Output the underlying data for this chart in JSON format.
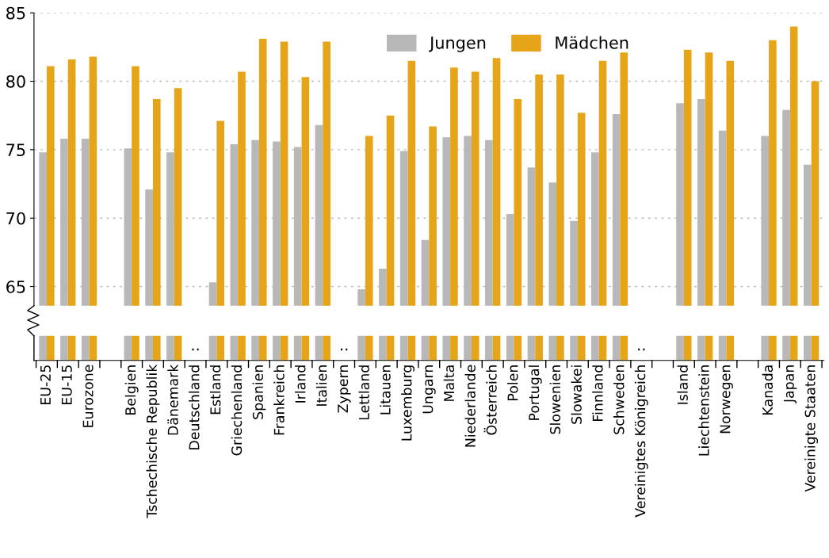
{
  "chart_data": {
    "type": "bar",
    "categories": [
      "EU-25",
      "EU-15",
      "Eurozone",
      null,
      "Belgien",
      "Tschechische Republik",
      "Dänemark",
      "Deutschland",
      "Estland",
      "Griechenland",
      "Spanien",
      "Frankreich",
      "Irland",
      "Italien",
      "Zypern",
      "Lettland",
      "Litauen",
      "Luxemburg",
      "Ungarn",
      "Malta",
      "Niederlande",
      "Österreich",
      "Polen",
      "Portugal",
      "Slowenien",
      "Slowakei",
      "Finnland",
      "Schweden",
      "Vereinigtes Königreich",
      null,
      "Island",
      "Liechtenstein",
      "Norwegen",
      null,
      "Kanada",
      "Japan",
      "Vereinigte Staaten"
    ],
    "series": [
      {
        "name": "Jungen",
        "color": "#b8b8b8",
        "values": [
          74.8,
          75.8,
          75.8,
          null,
          75.1,
          72.1,
          74.8,
          null,
          65.3,
          75.4,
          75.7,
          75.6,
          75.2,
          76.8,
          null,
          64.8,
          66.3,
          74.9,
          68.4,
          75.9,
          76.0,
          75.7,
          70.3,
          73.7,
          72.6,
          69.8,
          74.8,
          77.6,
          null,
          null,
          78.4,
          78.7,
          76.4,
          null,
          76.0,
          77.9,
          73.9
        ]
      },
      {
        "name": "Mädchen",
        "color": "#e6a519",
        "values": [
          81.1,
          81.6,
          81.8,
          null,
          81.1,
          78.7,
          79.5,
          null,
          77.1,
          80.7,
          83.1,
          82.9,
          80.3,
          82.9,
          null,
          76.0,
          77.5,
          81.5,
          76.7,
          81.0,
          80.7,
          81.7,
          78.7,
          80.5,
          80.5,
          77.7,
          81.5,
          82.1,
          null,
          null,
          82.3,
          82.1,
          81.5,
          null,
          83.0,
          84.0,
          80.0
        ]
      }
    ],
    "annotations": [
      "..",
      "..",
      ".."
    ],
    "ylim": [
      59.6,
      85
    ],
    "yticks": [
      65,
      70,
      75,
      80,
      85
    ],
    "grid": "y",
    "legend": "top"
  }
}
